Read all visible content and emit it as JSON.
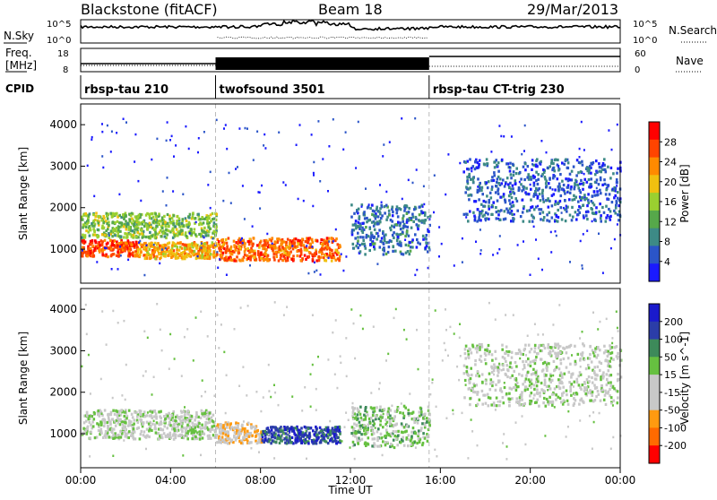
{
  "header": {
    "station": "Blackstone (fitACF)",
    "beam": "Beam 18",
    "date": "29/Mar/2013"
  },
  "noise_panel": {
    "left_label": "N.Sky",
    "left_ticks": [
      "10^5",
      "10^0"
    ],
    "right_label": "N.Search",
    "right_ticks": [
      "10^5",
      "10^0"
    ]
  },
  "freq_panel": {
    "left_label_line1": "Freq.",
    "left_label_line2": "[MHz]",
    "left_ticks": [
      "18",
      "8"
    ],
    "right_label": "Nave",
    "right_ticks": [
      "60",
      "0"
    ]
  },
  "cpid": {
    "label": "CPID",
    "segments": [
      {
        "name": "rbsp-tau 210",
        "start_hour": 0
      },
      {
        "name": "twofsound 3501",
        "start_hour": 6
      },
      {
        "name": "rbsp-tau CT-trig 230",
        "start_hour": 15.5
      }
    ]
  },
  "x_axis": {
    "label": "Time UT",
    "ticks": [
      "00:00",
      "04:00",
      "08:00",
      "12:00",
      "16:00",
      "20:00",
      "00:00"
    ]
  },
  "power_panel": {
    "ylabel": "Slant Range [km]",
    "yticks": [
      "1000",
      "2000",
      "3000",
      "4000"
    ],
    "colorbar_label": "Power [dB]",
    "colorbar_ticks": [
      "4",
      "8",
      "12",
      "16",
      "20",
      "24",
      "28"
    ],
    "colors": [
      "#1a1aff",
      "#2b55c8",
      "#3d8a86",
      "#56a84a",
      "#9ad030",
      "#f0c010",
      "#ff8a00",
      "#ff4400",
      "#ff0000"
    ]
  },
  "velocity_panel": {
    "ylabel": "Slant Range [km]",
    "yticks": [
      "1000",
      "2000",
      "3000",
      "4000"
    ],
    "colorbar_label": "Velocity [m s^-1]",
    "colorbar_ticks": [
      "200",
      "100",
      "50",
      "15",
      "-15",
      "-50",
      "-100",
      "-200"
    ],
    "colors": [
      "#1a1acc",
      "#2b3da8",
      "#3d8a5a",
      "#66c040",
      "#c8c8c8",
      "#c8c8c8",
      "#ff9a10",
      "#ff6a00",
      "#ff0000"
    ]
  },
  "chart_data": [
    {
      "type": "heatmap",
      "title": "Power",
      "xlabel": "Time UT",
      "ylabel": "Slant Range [km]",
      "xlim": [
        0,
        24
      ],
      "ylim": [
        180,
        4500
      ],
      "colorbar": {
        "label": "Power [dB]",
        "range": [
          0,
          32
        ]
      },
      "regions": [
        {
          "t": [
            0,
            2.5
          ],
          "range": [
            850,
            1250
          ],
          "value": 28
        },
        {
          "t": [
            2.5,
            6
          ],
          "range": [
            800,
            1200
          ],
          "value": 22
        },
        {
          "t": [
            6,
            11.5
          ],
          "range": [
            750,
            1300
          ],
          "value": 26
        },
        {
          "t": [
            0,
            6
          ],
          "range": [
            1300,
            1900
          ],
          "value": 14
        },
        {
          "t": [
            12,
            15.5
          ],
          "range": [
            900,
            2100
          ],
          "value": 6
        },
        {
          "t": [
            17,
            24
          ],
          "range": [
            1700,
            3200
          ],
          "value": 5
        }
      ]
    },
    {
      "type": "heatmap",
      "title": "Velocity",
      "xlabel": "Time UT",
      "ylabel": "Slant Range [km]",
      "xlim": [
        0,
        24
      ],
      "ylim": [
        180,
        4500
      ],
      "colorbar": {
        "label": "Velocity [m s^-1]",
        "range": [
          -200,
          200
        ]
      },
      "regions": [
        {
          "t": [
            0,
            6
          ],
          "range": [
            900,
            1600
          ],
          "value": 0
        },
        {
          "t": [
            6,
            8
          ],
          "range": [
            800,
            1300
          ],
          "value": -60
        },
        {
          "t": [
            8,
            11.5
          ],
          "range": [
            800,
            1200
          ],
          "value": 150
        },
        {
          "t": [
            12,
            15.5
          ],
          "range": [
            700,
            1700
          ],
          "value": 40
        },
        {
          "t": [
            17,
            24
          ],
          "range": [
            1700,
            3200
          ],
          "value": 0
        }
      ]
    }
  ]
}
